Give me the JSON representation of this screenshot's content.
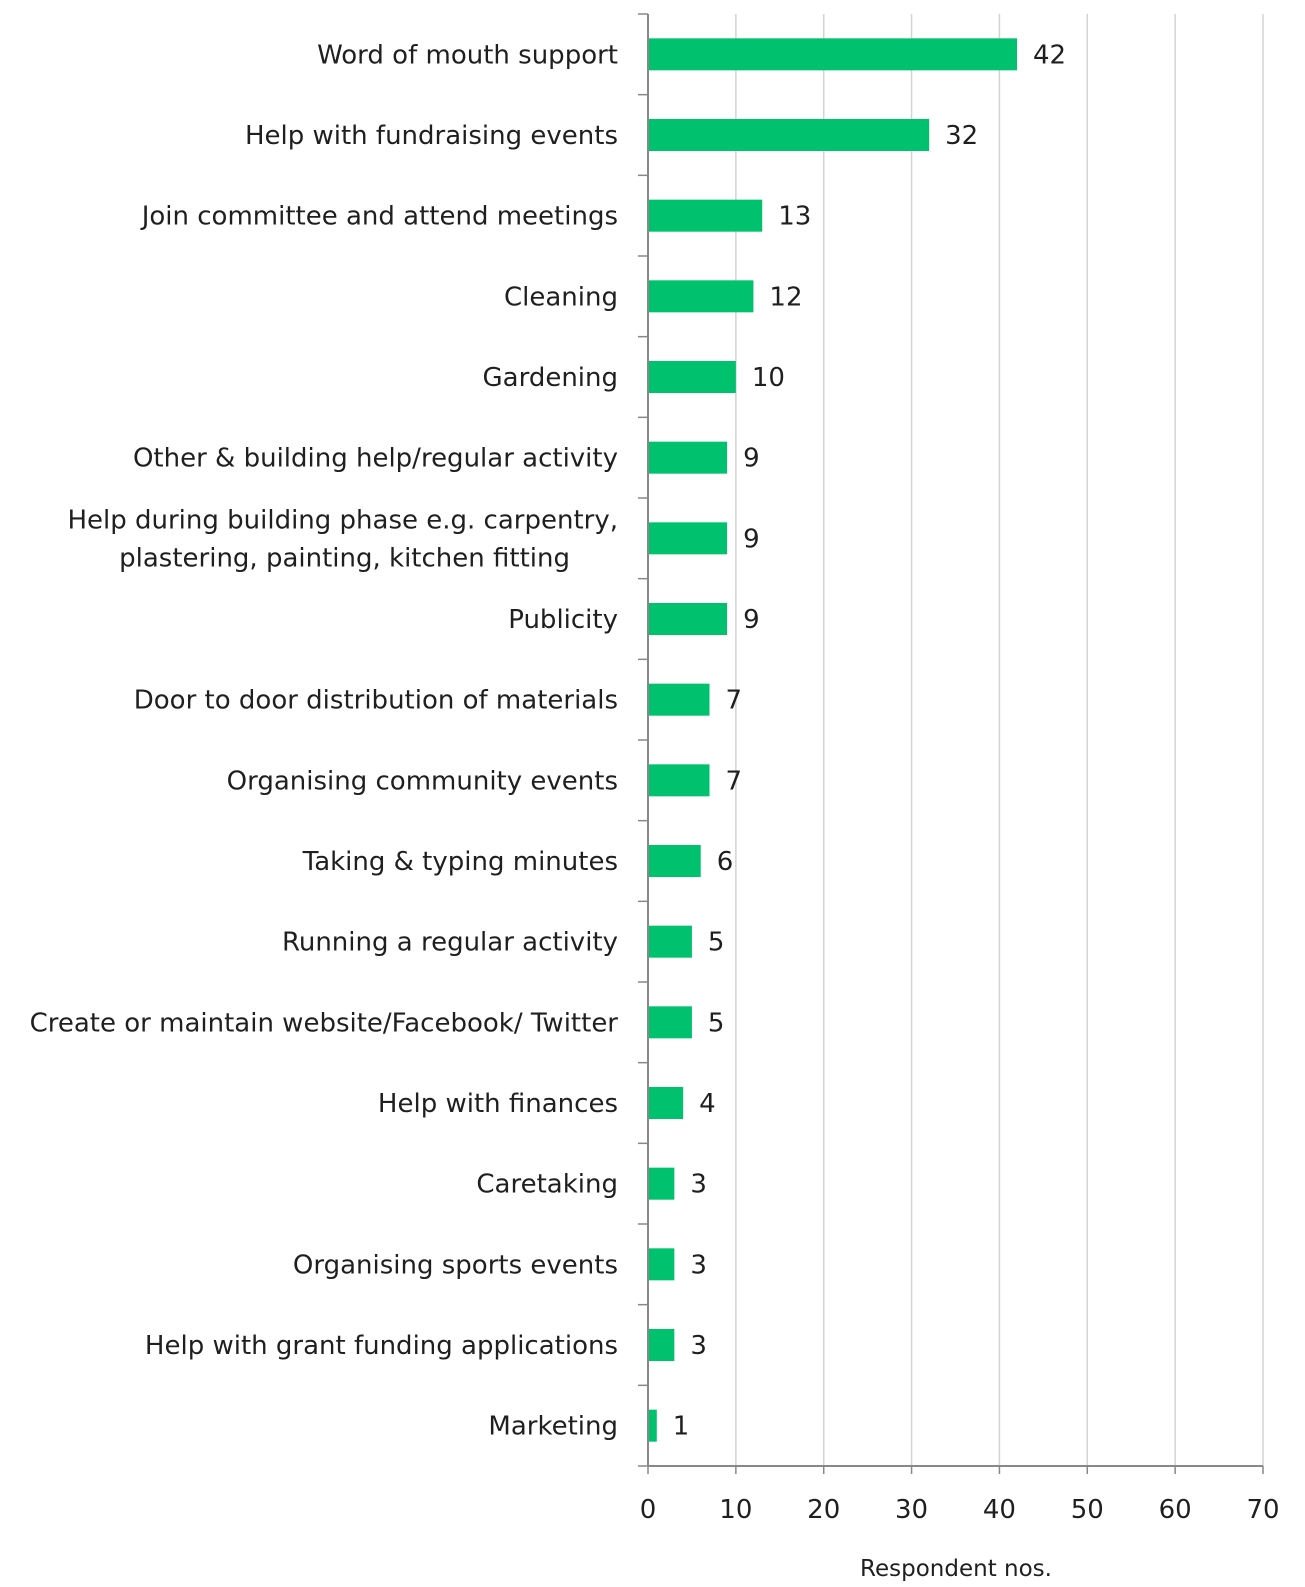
{
  "chart_data": {
    "type": "bar",
    "orientation": "horizontal",
    "categories": [
      "Word of mouth support",
      "Help with fundraising events",
      "Join committee and attend meetings",
      "Cleaning",
      "Gardening",
      "Other & building help/regular activity",
      "Help during building phase e.g. carpentry,\nplastering, painting, kitchen fitting",
      "Publicity",
      "Door to door distribution of materials",
      "Organising community events",
      "Taking & typing minutes",
      "Running a regular activity",
      "Create or maintain website/Facebook/ Twitter",
      "Help with finances",
      "Caretaking",
      "Organising sports events",
      "Help with grant funding applications",
      "Marketing"
    ],
    "values": [
      42,
      32,
      13,
      12,
      10,
      9,
      9,
      9,
      7,
      7,
      6,
      5,
      5,
      4,
      3,
      3,
      3,
      1
    ],
    "data_labels": [
      "42",
      "32",
      "13",
      "12",
      "10",
      "9",
      "9",
      "9",
      "7",
      "7",
      "6",
      "5",
      "5",
      "4",
      "3",
      "3",
      "3",
      "1"
    ],
    "xlabel": "Respondent nos.",
    "xlim": [
      0,
      70
    ],
    "xticks": [
      0,
      10,
      20,
      30,
      40,
      50,
      60,
      70
    ],
    "xtick_labels": [
      "0",
      "10",
      "20",
      "30",
      "40",
      "50",
      "60",
      "70"
    ],
    "grid": "vertical",
    "legend": "none",
    "colors": {
      "bar": "#00c26e",
      "grid": "#d3d3d3",
      "axis": "#888888",
      "text": "#1f1f1f"
    }
  }
}
